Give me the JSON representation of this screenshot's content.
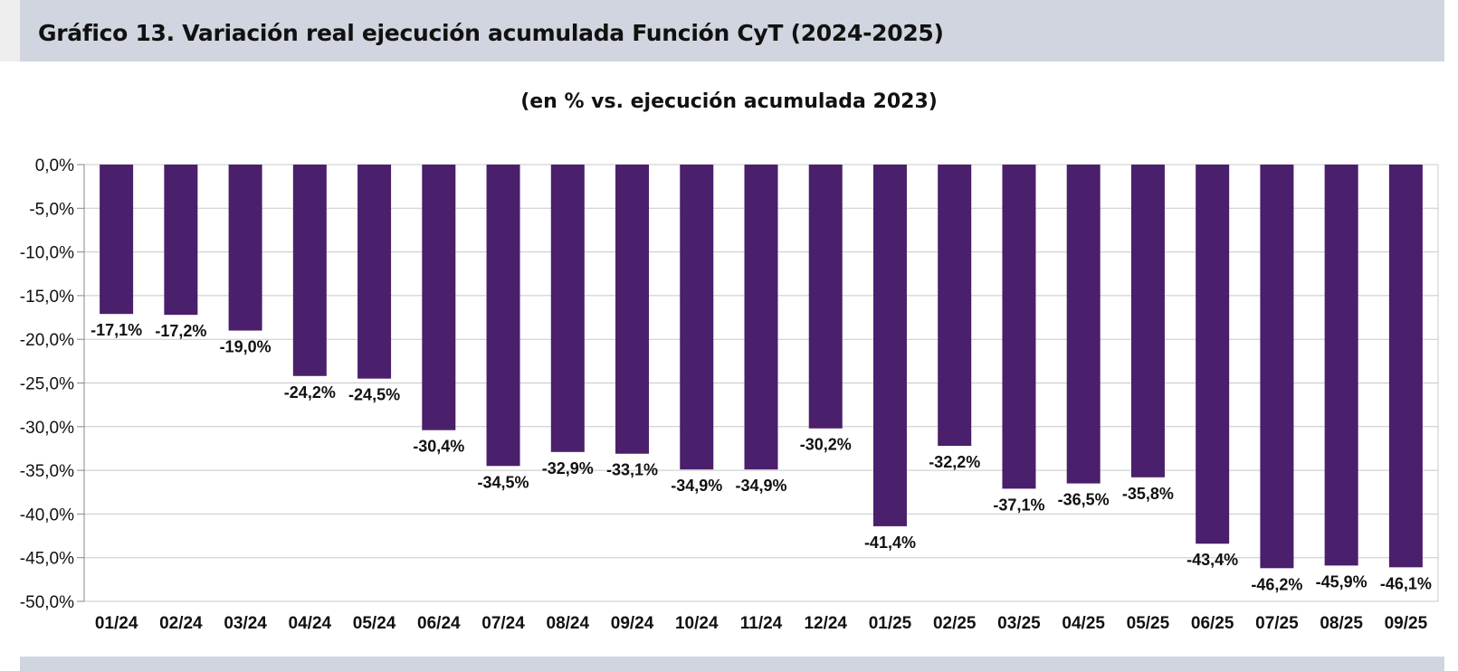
{
  "header": {
    "title": "Gráfico 13. Variación real ejecución acumulada Función CyT (2024-2025)"
  },
  "colors": {
    "bar": "#4a1f6b",
    "band": "#d1d5e0",
    "grid": "#c8c8c8"
  },
  "chart_data": {
    "type": "bar",
    "title": "Gráfico 13. Variación real ejecución acumulada Función CyT (2024-2025)",
    "subtitle": "(en % vs. ejecución acumulada 2023)",
    "xlabel": "",
    "ylabel": "",
    "ylim": [
      -50,
      0
    ],
    "ytick_step": 5,
    "yticks": [
      "0,0%",
      "-5,0%",
      "-10,0%",
      "-15,0%",
      "-20,0%",
      "-25,0%",
      "-30,0%",
      "-35,0%",
      "-40,0%",
      "-45,0%",
      "-50,0%"
    ],
    "grid": true,
    "categories": [
      "01/24",
      "02/24",
      "03/24",
      "04/24",
      "05/24",
      "06/24",
      "07/24",
      "08/24",
      "09/24",
      "10/24",
      "11/24",
      "12/24",
      "01/25",
      "02/25",
      "03/25",
      "04/25",
      "05/25",
      "06/25",
      "07/25",
      "08/25",
      "09/25"
    ],
    "values": [
      -17.1,
      -17.2,
      -19.0,
      -24.2,
      -24.5,
      -30.4,
      -34.5,
      -32.9,
      -33.1,
      -34.9,
      -34.9,
      -30.2,
      -41.4,
      -32.2,
      -37.1,
      -36.5,
      -35.8,
      -43.4,
      -46.2,
      -45.9,
      -46.1
    ],
    "data_labels": [
      "-17,1%",
      "-17,2%",
      "-19,0%",
      "-24,2%",
      "-24,5%",
      "-30,4%",
      "-34,5%",
      "-32,9%",
      "-33,1%",
      "-34,9%",
      "-34,9%",
      "-30,2%",
      "-41,4%",
      "-32,2%",
      "-37,1%",
      "-36,5%",
      "-35,8%",
      "-43,4%",
      "-46,2%",
      "-45,9%",
      "-46,1%"
    ]
  }
}
